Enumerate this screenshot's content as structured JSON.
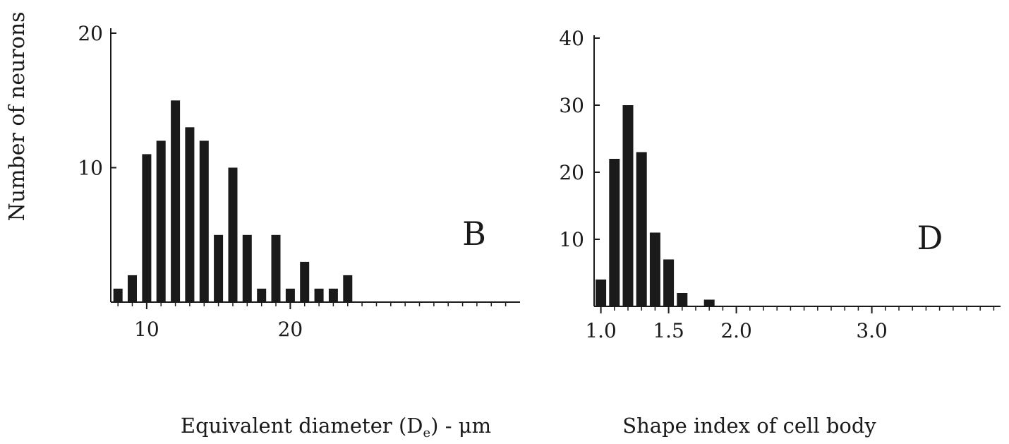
{
  "shared_ylabel": "Number of neurons",
  "chart_data": [
    {
      "type": "bar",
      "panel": "B",
      "title": "",
      "xlabel_pre": "Equivalent diameter (D",
      "xlabel_sub": "e",
      "xlabel_post": ") - μm",
      "ylabel": "Number of neurons",
      "xlim": [
        7.5,
        36
      ],
      "ylim": [
        0,
        20
      ],
      "x_ticks": [
        10,
        20
      ],
      "y_ticks": [
        10,
        20
      ],
      "x": [
        8,
        9,
        10,
        11,
        12,
        13,
        14,
        15,
        16,
        17,
        18,
        19,
        20,
        21,
        22,
        23,
        24
      ],
      "values": [
        1,
        2,
        11,
        12,
        15,
        13,
        12,
        5,
        10,
        5,
        1,
        5,
        1,
        3,
        1,
        1,
        2
      ],
      "color": "#1a1a1a",
      "grid": false
    },
    {
      "type": "bar",
      "panel": "D",
      "title": "",
      "xlabel": "Shape index of cell body",
      "ylabel": "Number of neurons",
      "xlim": [
        0.95,
        3.95
      ],
      "ylim": [
        0,
        40
      ],
      "x_ticks": [
        "1.0",
        "1.5",
        "2.0",
        "3.0"
      ],
      "y_ticks": [
        10,
        20,
        30,
        40
      ],
      "x": [
        1.0,
        1.1,
        1.2,
        1.3,
        1.4,
        1.5,
        1.6,
        1.8
      ],
      "values": [
        4,
        22,
        30,
        23,
        11,
        7,
        2,
        1
      ],
      "color": "#1a1a1a",
      "grid": false
    }
  ]
}
